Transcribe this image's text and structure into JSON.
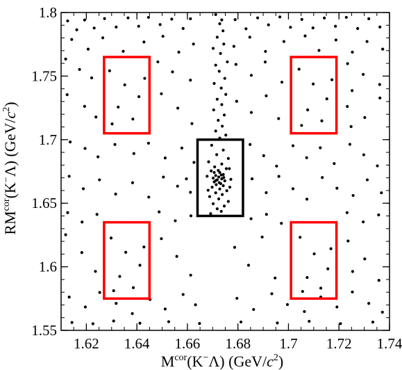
{
  "chart_data": {
    "type": "scatter",
    "title": "",
    "xlabel": {
      "base": "M",
      "sup": "cor",
      "particles": "(K",
      "particles_sup": "−",
      "particles_end": "Λ) (GeV/",
      "unit_var": "c",
      "unit_sup": "2",
      "close": ")"
    },
    "ylabel": {
      "base": "RM",
      "sup": "cor",
      "particles": "(K",
      "particles_sup": "−",
      "particles_end": "Λ) (GeV/",
      "unit_var": "c",
      "unit_sup": "2",
      "close": ")"
    },
    "xlim": [
      1.61,
      1.74
    ],
    "ylim": [
      1.55,
      1.8
    ],
    "xticks": [
      1.62,
      1.64,
      1.66,
      1.68,
      1.7,
      1.72,
      1.74
    ],
    "xtick_labels": [
      "1.62",
      "1.64",
      "1.66",
      "1.68",
      "1.7",
      "1.72",
      "1.74"
    ],
    "yticks": [
      1.55,
      1.6,
      1.65,
      1.7,
      1.75,
      1.8
    ],
    "ytick_labels": [
      "1.55",
      "1.6",
      "1.65",
      "1.7",
      "1.75",
      "1.8"
    ],
    "grid": false,
    "colors": {
      "signal_box": "#000000",
      "sideband_box": "#ff0000",
      "points": "#000000"
    },
    "regions": [
      {
        "name": "signal",
        "x": [
          1.664,
          1.682
        ],
        "y": [
          1.64,
          1.7
        ],
        "color": "#000000"
      },
      {
        "name": "sideband",
        "x": [
          1.627,
          1.645
        ],
        "y": [
          1.705,
          1.765
        ],
        "color": "#ff0000"
      },
      {
        "name": "sideband",
        "x": [
          1.701,
          1.719
        ],
        "y": [
          1.705,
          1.765
        ],
        "color": "#ff0000"
      },
      {
        "name": "sideband",
        "x": [
          1.627,
          1.645
        ],
        "y": [
          1.575,
          1.635
        ],
        "color": "#ff0000"
      },
      {
        "name": "sideband",
        "x": [
          1.701,
          1.719
        ],
        "y": [
          1.575,
          1.635
        ],
        "color": "#ff0000"
      }
    ],
    "points": [
      [
        1.6126,
        1.7934
      ],
      [
        1.6162,
        1.7864
      ],
      [
        1.6193,
        1.7941
      ],
      [
        1.6231,
        1.7878
      ],
      [
        1.6272,
        1.7952
      ],
      [
        1.6318,
        1.7886
      ],
      [
        1.6365,
        1.7958
      ],
      [
        1.6407,
        1.7892
      ],
      [
        1.6446,
        1.7962
      ],
      [
        1.6492,
        1.7905
      ],
      [
        1.6538,
        1.7948
      ],
      [
        1.6583,
        1.7874
      ],
      [
        1.6612,
        1.7951
      ],
      [
        1.6789,
        1.7944
      ],
      [
        1.6832,
        1.7872
      ],
      [
        1.6878,
        1.7958
      ],
      [
        1.6921,
        1.7903
      ],
      [
        1.6966,
        1.7965
      ],
      [
        1.7008,
        1.7884
      ],
      [
        1.7053,
        1.7946
      ],
      [
        1.7097,
        1.7879
      ],
      [
        1.7142,
        1.7957
      ],
      [
        1.7186,
        1.7892
      ],
      [
        1.7229,
        1.7962
      ],
      [
        1.7274,
        1.7874
      ],
      [
        1.7318,
        1.7951
      ],
      [
        1.7362,
        1.7886
      ],
      [
        1.6142,
        1.7788
      ],
      [
        1.6207,
        1.7712
      ],
      [
        1.6265,
        1.7801
      ],
      [
        1.6346,
        1.7695
      ],
      [
        1.6428,
        1.7768
      ],
      [
        1.6503,
        1.7813
      ],
      [
        1.6566,
        1.7688
      ],
      [
        1.6624,
        1.7752
      ],
      [
        1.6784,
        1.7734
      ],
      [
        1.6847,
        1.7806
      ],
      [
        1.6909,
        1.7694
      ],
      [
        1.6982,
        1.7772
      ],
      [
        1.7066,
        1.7816
      ],
      [
        1.7121,
        1.7702
      ],
      [
        1.7188,
        1.7784
      ],
      [
        1.7253,
        1.7688
      ],
      [
        1.7311,
        1.7772
      ],
      [
        1.7373,
        1.7712
      ],
      [
        1.6118,
        1.7634
      ],
      [
        1.6173,
        1.7552
      ],
      [
        1.6221,
        1.7486
      ],
      [
        1.6483,
        1.7612
      ],
      [
        1.6541,
        1.7533
      ],
      [
        1.6612,
        1.7468
      ],
      [
        1.6792,
        1.7592
      ],
      [
        1.6853,
        1.7506
      ],
      [
        1.6908,
        1.7611
      ],
      [
        1.6974,
        1.7452
      ],
      [
        1.7234,
        1.7598
      ],
      [
        1.7296,
        1.7513
      ],
      [
        1.7361,
        1.7434
      ],
      [
        1.7252,
        1.7386
      ],
      [
        1.6124,
        1.7354
      ],
      [
        1.6193,
        1.7262
      ],
      [
        1.6238,
        1.7178
      ],
      [
        1.6497,
        1.7361
      ],
      [
        1.6562,
        1.7248
      ],
      [
        1.6618,
        1.7126
      ],
      [
        1.6795,
        1.7302
      ],
      [
        1.6853,
        1.7214
      ],
      [
        1.6912,
        1.7345
      ],
      [
        1.6961,
        1.7166
      ],
      [
        1.7233,
        1.7261
      ],
      [
        1.7302,
        1.7174
      ],
      [
        1.7362,
        1.7328
      ],
      [
        1.7248,
        1.7103
      ],
      [
        1.6136,
        1.6982
      ],
      [
        1.6195,
        1.6931
      ],
      [
        1.6246,
        1.6865
      ],
      [
        1.6313,
        1.6962
      ],
      [
        1.6388,
        1.6891
      ],
      [
        1.6446,
        1.6972
      ],
      [
        1.6512,
        1.6856
      ],
      [
        1.6578,
        1.6934
      ],
      [
        1.6626,
        1.6821
      ],
      [
        1.6848,
        1.6962
      ],
      [
        1.6902,
        1.6874
      ],
      [
        1.6953,
        1.6792
      ],
      [
        1.7018,
        1.6952
      ],
      [
        1.7072,
        1.6858
      ],
      [
        1.7126,
        1.6936
      ],
      [
        1.7181,
        1.6812
      ],
      [
        1.7243,
        1.6963
      ],
      [
        1.7298,
        1.6881
      ],
      [
        1.7352,
        1.6794
      ],
      [
        1.6132,
        1.6712
      ],
      [
        1.6188,
        1.6614
      ],
      [
        1.6252,
        1.6684
      ],
      [
        1.6316,
        1.6572
      ],
      [
        1.6383,
        1.6661
      ],
      [
        1.6447,
        1.6548
      ],
      [
        1.6505,
        1.6706
      ],
      [
        1.6561,
        1.6634
      ],
      [
        1.6596,
        1.6692
      ],
      [
        1.6612,
        1.6586
      ],
      [
        1.6856,
        1.6692
      ],
      [
        1.6912,
        1.6583
      ],
      [
        1.6962,
        1.6711
      ],
      [
        1.7018,
        1.6614
      ],
      [
        1.7073,
        1.6532
      ],
      [
        1.7134,
        1.6702
      ],
      [
        1.7192,
        1.6618
      ],
      [
        1.7256,
        1.6561
      ],
      [
        1.7312,
        1.6684
      ],
      [
        1.7368,
        1.6582
      ],
      [
        1.6126,
        1.6426
      ],
      [
        1.6183,
        1.6352
      ],
      [
        1.6242,
        1.6412
      ],
      [
        1.6488,
        1.6432
      ],
      [
        1.6552,
        1.6362
      ],
      [
        1.6614,
        1.6401
      ],
      [
        1.6852,
        1.6378
      ],
      [
        1.6913,
        1.6412
      ],
      [
        1.6972,
        1.6342
      ],
      [
        1.7232,
        1.6426
      ],
      [
        1.7296,
        1.6353
      ],
      [
        1.7357,
        1.6408
      ],
      [
        1.6118,
        1.6252
      ],
      [
        1.6182,
        1.6112
      ],
      [
        1.6236,
        1.5964
      ],
      [
        1.6497,
        1.6221
      ],
      [
        1.6558,
        1.6082
      ],
      [
        1.6613,
        1.5934
      ],
      [
        1.6787,
        1.6153
      ],
      [
        1.6842,
        1.6012
      ],
      [
        1.6896,
        1.6234
      ],
      [
        1.6947,
        1.5912
      ],
      [
        1.7236,
        1.6203
      ],
      [
        1.7302,
        1.6062
      ],
      [
        1.7358,
        1.5893
      ],
      [
        1.7254,
        1.5963
      ],
      [
        1.6132,
        1.5762
      ],
      [
        1.6196,
        1.5684
      ],
      [
        1.6253,
        1.5798
      ],
      [
        1.6318,
        1.5712
      ],
      [
        1.6382,
        1.5632
      ],
      [
        1.6452,
        1.5743
      ],
      [
        1.6512,
        1.5668
      ],
      [
        1.6583,
        1.5782
      ],
      [
        1.6632,
        1.5701
      ],
      [
        1.6796,
        1.5752
      ],
      [
        1.6862,
        1.5664
      ],
      [
        1.6934,
        1.5788
      ],
      [
        1.6996,
        1.5703
      ],
      [
        1.7063,
        1.5648
      ],
      [
        1.7128,
        1.5762
      ],
      [
        1.7192,
        1.5684
      ],
      [
        1.7253,
        1.5802
      ],
      [
        1.7318,
        1.5712
      ],
      [
        1.7372,
        1.5643
      ],
      [
        1.6143,
        1.5562
      ],
      [
        1.6226,
        1.5552
      ],
      [
        1.6308,
        1.5574
      ],
      [
        1.6412,
        1.5556
      ],
      [
        1.6526,
        1.5568
      ],
      [
        1.6648,
        1.5554
      ],
      [
        1.6812,
        1.5566
      ],
      [
        1.6956,
        1.5558
      ],
      [
        1.7082,
        1.5571
      ],
      [
        1.7206,
        1.5553
      ],
      [
        1.7334,
        1.5565
      ],
      [
        1.6292,
        1.7542
      ],
      [
        1.6352,
        1.7431
      ],
      [
        1.6408,
        1.7338
      ],
      [
        1.6326,
        1.7256
      ],
      [
        1.6384,
        1.7162
      ],
      [
        1.6431,
        1.7482
      ],
      [
        1.6302,
        1.7124
      ],
      [
        1.7042,
        1.7554
      ],
      [
        1.7098,
        1.7438
      ],
      [
        1.7152,
        1.7321
      ],
      [
        1.7076,
        1.7234
      ],
      [
        1.7132,
        1.7148
      ],
      [
        1.7172,
        1.7471
      ],
      [
        1.7052,
        1.7112
      ],
      [
        1.6298,
        1.6226
      ],
      [
        1.6356,
        1.6114
      ],
      [
        1.6412,
        1.6012
      ],
      [
        1.6332,
        1.5924
      ],
      [
        1.6386,
        1.5836
      ],
      [
        1.6428,
        1.6156
      ],
      [
        1.6308,
        1.5812
      ],
      [
        1.7046,
        1.6232
      ],
      [
        1.7102,
        1.6102
      ],
      [
        1.7156,
        1.5984
      ],
      [
        1.7074,
        1.5916
      ],
      [
        1.7128,
        1.5832
      ],
      [
        1.7168,
        1.6142
      ],
      [
        1.7056,
        1.5806
      ],
      [
        1.6712,
        1.7984
      ],
      [
        1.6728,
        1.7912
      ],
      [
        1.6741,
        1.7856
      ],
      [
        1.6736,
        1.7942
      ],
      [
        1.6718,
        1.7806
      ],
      [
        1.6744,
        1.7752
      ],
      [
        1.6702,
        1.7718
      ],
      [
        1.6731,
        1.7678
      ],
      [
        1.6758,
        1.7612
      ],
      [
        1.6712,
        1.7586
      ],
      [
        1.6726,
        1.7538
      ],
      [
        1.6748,
        1.7482
      ],
      [
        1.6706,
        1.7442
      ],
      [
        1.6734,
        1.7406
      ],
      [
        1.6752,
        1.7356
      ],
      [
        1.6718,
        1.7318
      ],
      [
        1.6736,
        1.7276
      ],
      [
        1.6704,
        1.7234
      ],
      [
        1.6746,
        1.7194
      ],
      [
        1.6722,
        1.7152
      ],
      [
        1.6738,
        1.7106
      ],
      [
        1.6712,
        1.7068
      ],
      [
        1.6752,
        1.7036
      ],
      [
        1.6728,
        1.7012
      ],
      [
        1.6696,
        1.6956
      ],
      [
        1.6742,
        1.6918
      ],
      [
        1.6716,
        1.6882
      ],
      [
        1.6762,
        1.6852
      ],
      [
        1.6684,
        1.6826
      ],
      [
        1.6736,
        1.6808
      ],
      [
        1.6708,
        1.6786
      ],
      [
        1.6754,
        1.6772
      ],
      [
        1.6694,
        1.6754
      ],
      [
        1.6728,
        1.6742
      ],
      [
        1.6742,
        1.6726
      ],
      [
        1.6712,
        1.6718
      ],
      [
        1.6724,
        1.6706
      ],
      [
        1.6702,
        1.6698
      ],
      [
        1.6736,
        1.6692
      ],
      [
        1.6718,
        1.6684
      ],
      [
        1.6748,
        1.6676
      ],
      [
        1.6706,
        1.6668
      ],
      [
        1.6726,
        1.6662
      ],
      [
        1.6732,
        1.6654
      ],
      [
        1.6714,
        1.6646
      ],
      [
        1.6742,
        1.6638
      ],
      [
        1.6698,
        1.6626
      ],
      [
        1.6728,
        1.6612
      ],
      [
        1.6756,
        1.6598
      ],
      [
        1.6712,
        1.6582
      ],
      [
        1.6738,
        1.6568
      ],
      [
        1.6688,
        1.6552
      ],
      [
        1.6724,
        1.6534
      ],
      [
        1.6762,
        1.6514
      ],
      [
        1.6702,
        1.6496
      ],
      [
        1.6746,
        1.6478
      ],
      [
        1.6718,
        1.6456
      ],
      [
        1.6734,
        1.6436
      ],
      [
        1.6692,
        1.6418
      ],
      [
        1.6766,
        1.6772
      ],
      [
        1.6678,
        1.6712
      ],
      [
        1.6772,
        1.6688
      ],
      [
        1.6682,
        1.6602
      ],
      [
        1.6768,
        1.6626
      ],
      [
        1.6722,
        1.6758
      ],
      [
        1.6706,
        1.6742
      ],
      [
        1.6744,
        1.6702
      ],
      [
        1.6712,
        1.6678
      ],
      [
        1.6734,
        1.6722
      ]
    ]
  }
}
